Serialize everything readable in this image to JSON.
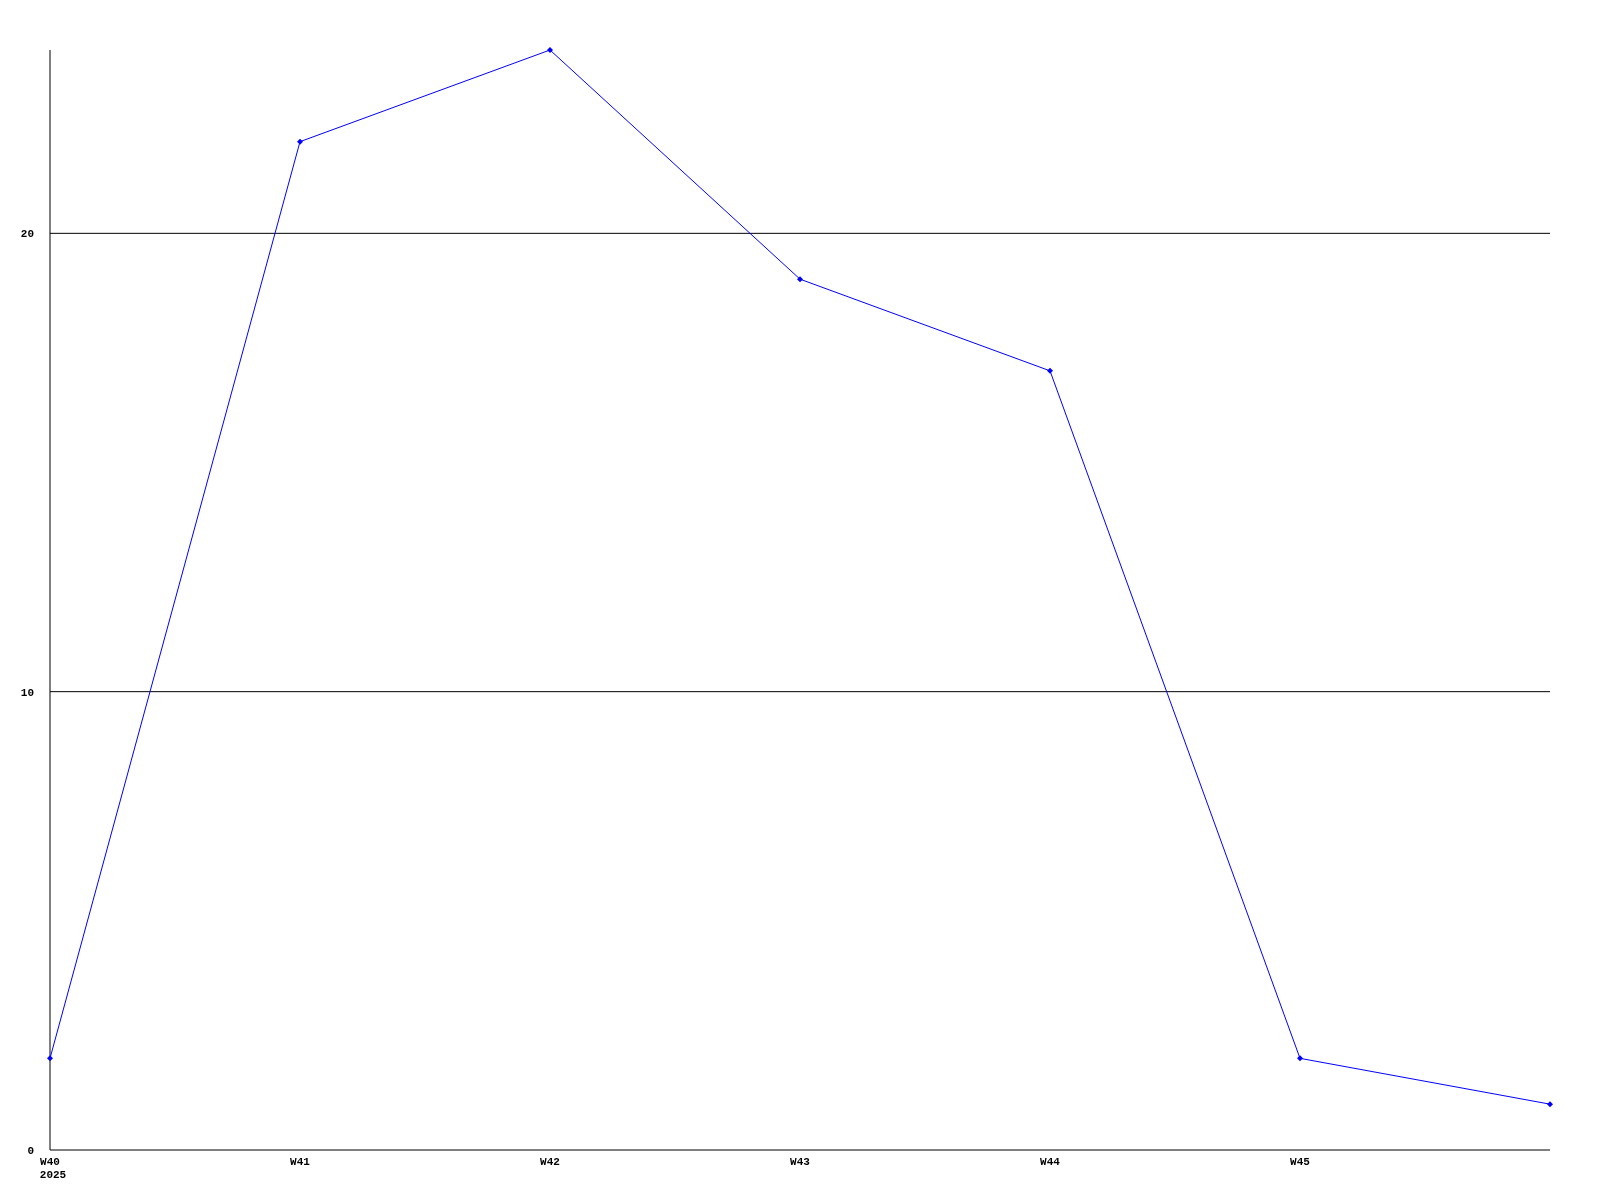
{
  "chart_data": {
    "type": "line",
    "categories": [
      "W40\n2025",
      "W41",
      "W42",
      "W43",
      "W44",
      "W45",
      null
    ],
    "series": [
      {
        "color": "#0000ff",
        "values": [
          2,
          22,
          24,
          19,
          17,
          2,
          1
        ]
      }
    ],
    "ylim": [
      0,
      24
    ],
    "yticks": [
      0,
      10,
      20
    ],
    "grid": "y",
    "marker": "diamond",
    "line_style": "solid"
  }
}
